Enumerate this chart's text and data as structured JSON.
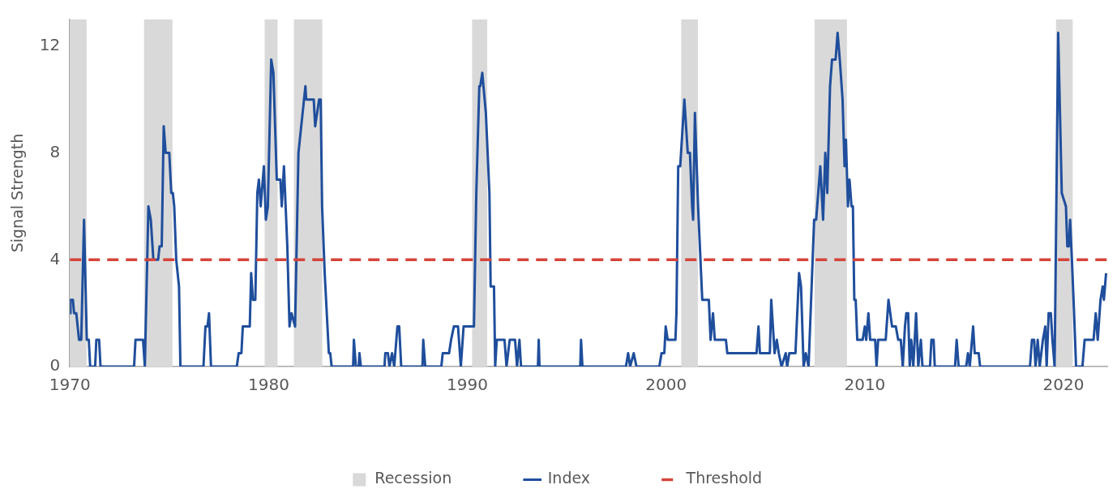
{
  "chart_data": {
    "type": "line",
    "ylabel": "Signal Strength",
    "xlim": [
      1970,
      2022.2
    ],
    "xticks": [
      1970,
      1980,
      1990,
      2000,
      2010,
      2020
    ],
    "ylim": [
      0,
      13
    ],
    "yticks": [
      0,
      4,
      8,
      12
    ],
    "grid": false,
    "legend": "bottom",
    "marker": "none",
    "series": [
      {
        "name": "Index",
        "color": "#1f4e9c",
        "x": [
          1970.0,
          1970.03,
          1970.15,
          1970.21,
          1970.32,
          1970.46,
          1970.57,
          1970.71,
          1970.85,
          1970.95,
          1971.02,
          1971.27,
          1971.33,
          1971.47,
          1971.54,
          1973.23,
          1973.3,
          1973.68,
          1973.77,
          1973.95,
          1974.07,
          1974.2,
          1974.44,
          1974.51,
          1974.62,
          1974.72,
          1974.82,
          1975.0,
          1975.1,
          1975.18,
          1975.25,
          1975.35,
          1975.49,
          1975.56,
          1976.72,
          1976.82,
          1976.92,
          1977.0,
          1977.1,
          1978.4,
          1978.49,
          1978.63,
          1978.7,
          1979.05,
          1979.12,
          1979.21,
          1979.33,
          1979.43,
          1979.51,
          1979.6,
          1979.76,
          1979.86,
          1979.96,
          1980.13,
          1980.24,
          1980.41,
          1980.59,
          1980.66,
          1980.77,
          1980.94,
          1981.05,
          1981.15,
          1981.33,
          1981.5,
          1981.64,
          1981.85,
          1981.89,
          1982.27,
          1982.34,
          1982.54,
          1982.62,
          1982.69,
          1982.82,
          1983.03,
          1983.1,
          1983.17,
          1984.25,
          1984.29,
          1984.39,
          1984.53,
          1984.57,
          1984.64,
          1985.83,
          1985.87,
          1986.0,
          1986.08,
          1986.21,
          1986.32,
          1986.48,
          1986.57,
          1986.67,
          1987.74,
          1987.78,
          1987.88,
          1988.69,
          1988.76,
          1989.08,
          1989.18,
          1989.32,
          1989.53,
          1989.67,
          1989.81,
          1990.33,
          1990.45,
          1990.6,
          1990.65,
          1990.75,
          1990.93,
          1991.11,
          1991.17,
          1991.34,
          1991.4,
          1991.48,
          1991.87,
          1991.97,
          1992.13,
          1992.4,
          1992.5,
          1992.62,
          1992.7,
          1993.55,
          1993.59,
          1993.63,
          1995.68,
          1995.72,
          1995.79,
          1997.98,
          1998.09,
          1998.19,
          1998.37,
          1998.51,
          1999.66,
          1999.77,
          1999.91,
          1999.98,
          2000.08,
          2000.47,
          2000.52,
          2000.61,
          2000.71,
          2000.92,
          2001.09,
          2001.2,
          2001.31,
          2001.36,
          2001.45,
          2001.61,
          2001.82,
          2002.15,
          2002.24,
          2002.36,
          2002.45,
          2003.01,
          2003.08,
          2004.55,
          2004.65,
          2004.72,
          2005.22,
          2005.29,
          2005.46,
          2005.57,
          2005.67,
          2005.81,
          2006.02,
          2006.09,
          2006.2,
          2006.51,
          2006.69,
          2006.79,
          2006.92,
          2007.03,
          2007.17,
          2007.45,
          2007.55,
          2007.76,
          2007.9,
          2008.01,
          2008.11,
          2008.25,
          2008.35,
          2008.53,
          2008.63,
          2008.74,
          2008.88,
          2008.98,
          2009.05,
          2009.15,
          2009.23,
          2009.33,
          2009.4,
          2009.47,
          2009.54,
          2009.62,
          2009.89,
          2010.0,
          2010.07,
          2010.18,
          2010.27,
          2010.52,
          2010.59,
          2010.67,
          2010.77,
          2011.05,
          2011.19,
          2011.37,
          2011.56,
          2011.68,
          2011.81,
          2011.91,
          2012.02,
          2012.09,
          2012.18,
          2012.26,
          2012.34,
          2012.44,
          2012.58,
          2012.69,
          2012.82,
          2012.9,
          2013.28,
          2013.35,
          2013.46,
          2013.52,
          2014.54,
          2014.62,
          2014.72,
          2015.1,
          2015.19,
          2015.28,
          2015.45,
          2015.53,
          2015.73,
          2015.8,
          2018.31,
          2018.41,
          2018.52,
          2018.59,
          2018.7,
          2018.8,
          2018.96,
          2019.08,
          2019.15,
          2019.25,
          2019.36,
          2019.44,
          2019.55,
          2019.73,
          2019.91,
          2020.12,
          2020.19,
          2020.26,
          2020.33,
          2020.42,
          2020.53,
          2020.63,
          2020.95,
          2021.06,
          2021.51,
          2021.62,
          2021.72,
          2021.86,
          2021.97,
          2022.03,
          2022.14
        ],
        "values": [
          2,
          2.5,
          2.5,
          2,
          2,
          1,
          1,
          5.5,
          1,
          1,
          0,
          0,
          1,
          1,
          0,
          0,
          1,
          1,
          0,
          6,
          5.5,
          4,
          4,
          4.5,
          4.5,
          9,
          8,
          8,
          6.5,
          6.5,
          6,
          4,
          3,
          0,
          0,
          1.5,
          1.5,
          2,
          0,
          0,
          0.5,
          0.5,
          1.5,
          1.5,
          3.5,
          2.5,
          2.5,
          6.5,
          7,
          6,
          7.5,
          5.5,
          6,
          11.5,
          11,
          7,
          7,
          6,
          7.5,
          4.5,
          1.5,
          2,
          1.5,
          8,
          9,
          10.5,
          10,
          10,
          9,
          10,
          10,
          6,
          3.5,
          0.5,
          0.5,
          0,
          0,
          1,
          0,
          0,
          0.5,
          0,
          0,
          0.5,
          0.5,
          0,
          0.5,
          0,
          1.5,
          1.5,
          0,
          0,
          1,
          0,
          0,
          0.5,
          0.5,
          1,
          1.5,
          1.5,
          0,
          1.5,
          1.5,
          6.5,
          10.5,
          10.5,
          11,
          9.5,
          6.5,
          3,
          3,
          0,
          1,
          1,
          0,
          1,
          1,
          0,
          1,
          0,
          0,
          1,
          0,
          0,
          1,
          0,
          0,
          0.5,
          0,
          0.5,
          0,
          0,
          0.5,
          0.5,
          1.5,
          1,
          1,
          2,
          7.5,
          7.5,
          10,
          8,
          8,
          6,
          5.5,
          9.5,
          6,
          2.5,
          2.5,
          1,
          2,
          1,
          1,
          0.5,
          0.5,
          1.5,
          0.5,
          0.5,
          2.5,
          0.5,
          1,
          0.5,
          0,
          0.5,
          0,
          0.5,
          0.5,
          3.5,
          3,
          0,
          0.5,
          0,
          5.5,
          5.5,
          7.5,
          5.5,
          8,
          6.5,
          10.5,
          11.5,
          11.5,
          12.5,
          11.5,
          10,
          7.5,
          8.5,
          6,
          7,
          6,
          6,
          2.5,
          2.5,
          1,
          1,
          1.5,
          1,
          2,
          1,
          1,
          0,
          1,
          1,
          1,
          2.5,
          1.5,
          1.5,
          1,
          1,
          0,
          1.5,
          2,
          2,
          0,
          1,
          0,
          2,
          0,
          1,
          0,
          0,
          1,
          1,
          0,
          0,
          1,
          0,
          0,
          0.5,
          0,
          1.5,
          0.5,
          0.5,
          0,
          0,
          1,
          1,
          0,
          1,
          0,
          1,
          1.5,
          0,
          2,
          2,
          1,
          0,
          12.5,
          6.5,
          6,
          4.5,
          4.5,
          5.5,
          4,
          2,
          0,
          0,
          1,
          1,
          2,
          1,
          2.5,
          3,
          2.5,
          3.5
        ]
      }
    ],
    "ref_lines": [
      {
        "axis": "y",
        "value": 4,
        "label": "Threshold",
        "color": "#d5443b",
        "line_style": "dashed"
      }
    ],
    "bands": [
      {
        "axis": "x",
        "from": 1970.0,
        "to": 1970.84,
        "label": "Recession",
        "color": "#d9d9d9"
      },
      {
        "axis": "x",
        "from": 1973.73,
        "to": 1975.16,
        "color": "#d9d9d9"
      },
      {
        "axis": "x",
        "from": 1979.8,
        "to": 1980.45,
        "color": "#d9d9d9"
      },
      {
        "axis": "x",
        "from": 1981.27,
        "to": 1982.7,
        "color": "#d9d9d9"
      },
      {
        "axis": "x",
        "from": 1990.24,
        "to": 1991.0,
        "color": "#d9d9d9"
      },
      {
        "axis": "x",
        "from": 2000.76,
        "to": 2001.6,
        "color": "#d9d9d9"
      },
      {
        "axis": "x",
        "from": 2007.47,
        "to": 2009.1,
        "color": "#d9d9d9"
      },
      {
        "axis": "x",
        "from": 2019.62,
        "to": 2020.46,
        "color": "#d9d9d9"
      }
    ]
  }
}
